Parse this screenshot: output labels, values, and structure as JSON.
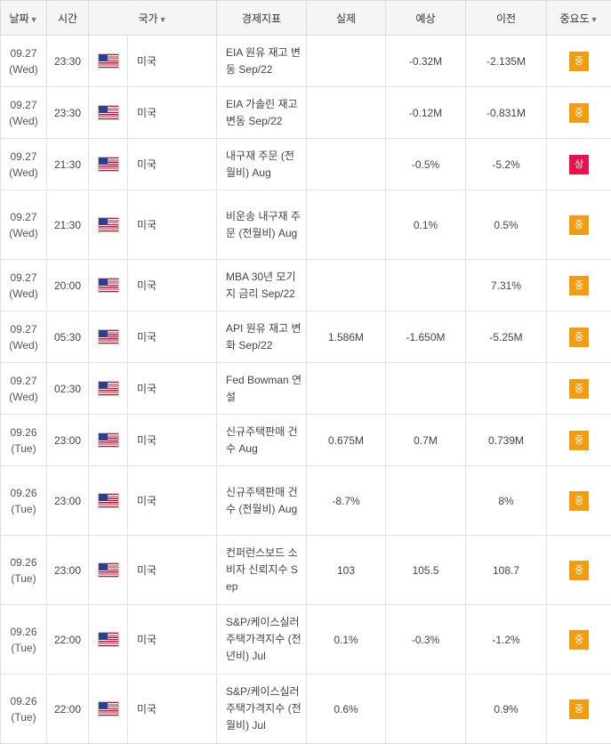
{
  "headers": {
    "date": "날짜",
    "time": "시간",
    "country": "국가",
    "indicator": "경제지표",
    "actual": "실제",
    "forecast": "예상",
    "previous": "이전",
    "importance": "중요도",
    "sort_arrow": "▼"
  },
  "colors": {
    "importance_mid": "#f39c12",
    "importance_high": "#e8134e"
  },
  "rows": [
    {
      "date": "09.27",
      "day": "(Wed)",
      "time": "23:30",
      "flag_icon": "us-flag-icon",
      "country": "미국",
      "indicator": "EIA 원유 재고 변동 Sep/22",
      "actual": "",
      "forecast": "-0.32M",
      "previous": "-2.135M",
      "importance": "중",
      "level": "mid",
      "h": 58
    },
    {
      "date": "09.27",
      "day": "(Wed)",
      "time": "23:30",
      "flag_icon": "us-flag-icon",
      "country": "미국",
      "indicator": "EIA 가솔린 재고 변동 Sep/22",
      "actual": "",
      "forecast": "-0.12M",
      "previous": "-0.831M",
      "importance": "중",
      "level": "mid",
      "h": 58
    },
    {
      "date": "09.27",
      "day": "(Wed)",
      "time": "21:30",
      "flag_icon": "us-flag-icon",
      "country": "미국",
      "indicator": "내구재 주문 (전월비) Aug",
      "actual": "",
      "forecast": "-0.5%",
      "previous": "-5.2%",
      "importance": "상",
      "level": "high",
      "h": 58
    },
    {
      "date": "09.27",
      "day": "(Wed)",
      "time": "21:30",
      "flag_icon": "us-flag-icon",
      "country": "미국",
      "indicator": "비운송 내구재 주문 (전월비) Aug",
      "actual": "",
      "forecast": "0.1%",
      "previous": "0.5%",
      "importance": "중",
      "level": "mid",
      "h": 78
    },
    {
      "date": "09.27",
      "day": "(Wed)",
      "time": "20:00",
      "flag_icon": "us-flag-icon",
      "country": "미국",
      "indicator": "MBA 30년 모기지 금리 Sep/22",
      "actual": "",
      "forecast": "",
      "previous": "7.31%",
      "importance": "중",
      "level": "mid",
      "h": 58
    },
    {
      "date": "09.27",
      "day": "(Wed)",
      "time": "05:30",
      "flag_icon": "us-flag-icon",
      "country": "미국",
      "indicator": "API 원유 재고 변화 Sep/22",
      "actual": "1.586M",
      "forecast": "-1.650M",
      "previous": "-5.25M",
      "importance": "중",
      "level": "mid",
      "h": 58
    },
    {
      "date": "09.27",
      "day": "(Wed)",
      "time": "02:30",
      "flag_icon": "us-flag-icon",
      "country": "미국",
      "indicator": "Fed Bowman 연설",
      "actual": "",
      "forecast": "",
      "previous": "",
      "importance": "중",
      "level": "mid",
      "h": 58
    },
    {
      "date": "09.26",
      "day": "(Tue)",
      "time": "23:00",
      "flag_icon": "us-flag-icon",
      "country": "미국",
      "indicator": "신규주택판매 건수 Aug",
      "actual": "0.675M",
      "forecast": "0.7M",
      "previous": "0.739M",
      "importance": "중",
      "level": "mid",
      "h": 58
    },
    {
      "date": "09.26",
      "day": "(Tue)",
      "time": "23:00",
      "flag_icon": "us-flag-icon",
      "country": "미국",
      "indicator": "신규주택판매 건수 (전월비) Aug",
      "actual": "-8.7%",
      "forecast": "",
      "previous": "8%",
      "importance": "중",
      "level": "mid",
      "h": 78
    },
    {
      "date": "09.26",
      "day": "(Tue)",
      "time": "23:00",
      "flag_icon": "us-flag-icon",
      "country": "미국",
      "indicator": "컨퍼런스보드 소비자 신뢰지수 Sep",
      "actual": "103",
      "forecast": "105.5",
      "previous": "108.7",
      "importance": "중",
      "level": "mid",
      "h": 78
    },
    {
      "date": "09.26",
      "day": "(Tue)",
      "time": "22:00",
      "flag_icon": "us-flag-icon",
      "country": "미국",
      "indicator": "S&P/케이스실러 주택가격지수 (전년비) Jul",
      "actual": "0.1%",
      "forecast": "-0.3%",
      "previous": "-1.2%",
      "importance": "중",
      "level": "mid",
      "h": 78
    },
    {
      "date": "09.26",
      "day": "(Tue)",
      "time": "22:00",
      "flag_icon": "us-flag-icon",
      "country": "미국",
      "indicator": "S&P/케이스실러 주택가격지수 (전월비) Jul",
      "actual": "0.6%",
      "forecast": "",
      "previous": "0.9%",
      "importance": "중",
      "level": "mid",
      "h": 78
    }
  ]
}
